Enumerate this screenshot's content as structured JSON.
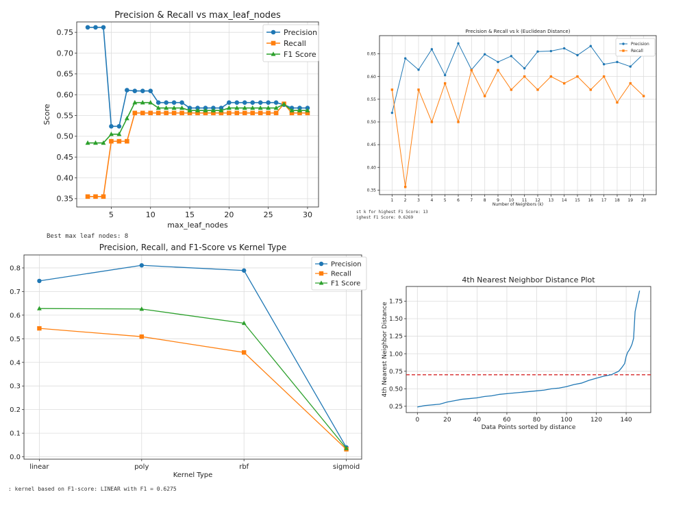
{
  "outputs": {
    "panel1": "Best max leaf nodes: 8",
    "panel2_line1": "st k for highest F1 Score: 13",
    "panel2_line2": "ighest F1 Score: 0.6269",
    "panel3": ": kernel based on F1-score: LINEAR with F1 = 0.6275"
  },
  "chart_data": [
    {
      "type": "line",
      "title": "Precision & Recall vs max_leaf_nodes",
      "xlabel": "max_leaf_nodes",
      "ylabel": "Score",
      "x": [
        2,
        3,
        4,
        5,
        6,
        7,
        8,
        9,
        10,
        11,
        12,
        13,
        14,
        15,
        16,
        17,
        18,
        19,
        20,
        21,
        22,
        23,
        24,
        25,
        26,
        27,
        28,
        29,
        30
      ],
      "xlim": [
        0.6,
        31.4
      ],
      "ylim": [
        0.33,
        0.775
      ],
      "xticks": [
        5,
        10,
        15,
        20,
        25,
        30
      ],
      "xtick_labels": [
        "5",
        "10",
        "15",
        "20",
        "25",
        "30"
      ],
      "yticks": [
        0.35,
        0.4,
        0.45,
        0.5,
        0.55,
        0.6,
        0.65,
        0.7,
        0.75
      ],
      "ytick_labels": [
        "0.35",
        "0.40",
        "0.45",
        "0.50",
        "0.55",
        "0.60",
        "0.65",
        "0.70",
        "0.75"
      ],
      "grid": true,
      "legend": "upper-right",
      "series": [
        {
          "name": "Precision",
          "color": "#1f77b4",
          "marker": "circle",
          "values": [
            0.762,
            0.762,
            0.762,
            0.524,
            0.524,
            0.611,
            0.609,
            0.609,
            0.609,
            0.581,
            0.581,
            0.581,
            0.581,
            0.568,
            0.568,
            0.568,
            0.568,
            0.568,
            0.581,
            0.581,
            0.581,
            0.581,
            0.581,
            0.581,
            0.581,
            0.576,
            0.568,
            0.568,
            0.568
          ]
        },
        {
          "name": "Recall",
          "color": "#ff7f0e",
          "marker": "square",
          "values": [
            0.355,
            0.355,
            0.355,
            0.488,
            0.488,
            0.488,
            0.556,
            0.556,
            0.556,
            0.556,
            0.556,
            0.556,
            0.556,
            0.556,
            0.556,
            0.556,
            0.556,
            0.556,
            0.556,
            0.556,
            0.556,
            0.556,
            0.556,
            0.556,
            0.556,
            0.578,
            0.556,
            0.556,
            0.556
          ]
        },
        {
          "name": "F1 Score",
          "color": "#2ca02c",
          "marker": "triangle",
          "values": [
            0.484,
            0.484,
            0.484,
            0.505,
            0.505,
            0.543,
            0.581,
            0.581,
            0.581,
            0.568,
            0.568,
            0.568,
            0.568,
            0.562,
            0.562,
            0.562,
            0.562,
            0.562,
            0.568,
            0.568,
            0.568,
            0.568,
            0.568,
            0.568,
            0.568,
            0.577,
            0.562,
            0.562,
            0.562
          ]
        }
      ]
    },
    {
      "type": "line",
      "title": "Precision & Recall vs k (Euclidean Distance)",
      "xlabel": "Number of Neighbors (k)",
      "ylabel": "",
      "x": [
        1,
        2,
        3,
        4,
        5,
        6,
        7,
        8,
        9,
        10,
        11,
        12,
        13,
        14,
        15,
        16,
        17,
        18,
        19,
        20
      ],
      "xlim": [
        0.05,
        20.95
      ],
      "ylim": [
        0.34,
        0.69
      ],
      "xticks": [
        1,
        2,
        3,
        4,
        5,
        6,
        7,
        8,
        9,
        10,
        11,
        12,
        13,
        14,
        15,
        16,
        17,
        18,
        19,
        20
      ],
      "xtick_labels": [
        "1",
        "2",
        "3",
        "4",
        "5",
        "6",
        "7",
        "8",
        "9",
        "10",
        "11",
        "12",
        "13",
        "14",
        "15",
        "16",
        "17",
        "18",
        "19",
        "20"
      ],
      "yticks": [
        0.35,
        0.4,
        0.45,
        0.5,
        0.55,
        0.6,
        0.65
      ],
      "ytick_labels": [
        "0.35",
        "0.40",
        "0.45",
        "0.50",
        "0.55",
        "0.60",
        "0.65"
      ],
      "grid": true,
      "legend": "upper-right",
      "series": [
        {
          "name": "Precision",
          "color": "#1f77b4",
          "marker": "circle",
          "values": [
            0.52,
            0.64,
            0.615,
            0.66,
            0.603,
            0.673,
            0.615,
            0.649,
            0.632,
            0.645,
            0.618,
            0.655,
            0.656,
            0.662,
            0.647,
            0.667,
            0.627,
            0.632,
            0.622,
            0.65
          ]
        },
        {
          "name": "Recall",
          "color": "#ff7f0e",
          "marker": "square",
          "values": [
            0.571,
            0.357,
            0.571,
            0.5,
            0.585,
            0.5,
            0.614,
            0.557,
            0.614,
            0.571,
            0.6,
            0.571,
            0.6,
            0.585,
            0.6,
            0.571,
            0.6,
            0.543,
            0.585,
            0.557
          ]
        }
      ]
    },
    {
      "type": "line",
      "title": "Precision, Recall, and F1-Score vs Kernel Type",
      "xlabel": "Kernel Type",
      "ylabel": "",
      "categories": [
        "linear",
        "poly",
        "rbf",
        "sigmoid"
      ],
      "xlim": [
        -0.15,
        3.15
      ],
      "ylim": [
        -0.01,
        0.855
      ],
      "yticks": [
        0.0,
        0.1,
        0.2,
        0.3,
        0.4,
        0.5,
        0.6,
        0.7,
        0.8
      ],
      "ytick_labels": [
        "0.0",
        "0.1",
        "0.2",
        "0.3",
        "0.4",
        "0.5",
        "0.6",
        "0.7",
        "0.8"
      ],
      "grid": true,
      "legend": "upper-right",
      "series": [
        {
          "name": "Precision",
          "color": "#1f77b4",
          "marker": "circle",
          "values": [
            0.745,
            0.811,
            0.789,
            0.04
          ]
        },
        {
          "name": "Recall",
          "color": "#ff7f0e",
          "marker": "square",
          "values": [
            0.544,
            0.509,
            0.442,
            0.032
          ]
        },
        {
          "name": "F1 Score",
          "color": "#2ca02c",
          "marker": "triangle",
          "values": [
            0.628,
            0.626,
            0.566,
            0.036
          ]
        }
      ]
    },
    {
      "type": "line",
      "title": "4th Nearest Neighbor Distance Plot",
      "xlabel": "Data Points sorted by distance",
      "ylabel": "4th Nearest Neighbor Distance",
      "x": [
        0,
        5,
        10,
        15,
        20,
        25,
        30,
        35,
        40,
        45,
        50,
        55,
        60,
        65,
        70,
        75,
        80,
        85,
        90,
        95,
        100,
        105,
        110,
        115,
        120,
        125,
        130,
        133,
        135,
        137,
        139,
        140,
        141,
        142,
        143,
        144,
        145,
        146,
        147,
        148,
        149
      ],
      "xlim": [
        -7.5,
        156.5
      ],
      "ylim": [
        0.16,
        1.96
      ],
      "xticks": [
        0,
        20,
        40,
        60,
        80,
        100,
        120,
        140
      ],
      "xtick_labels": [
        "0",
        "20",
        "40",
        "60",
        "80",
        "100",
        "120",
        "140"
      ],
      "yticks": [
        0.25,
        0.5,
        0.75,
        1.0,
        1.25,
        1.5,
        1.75
      ],
      "ytick_labels": [
        "0.25",
        "0.50",
        "0.75",
        "1.00",
        "1.25",
        "1.50",
        "1.75"
      ],
      "grid": true,
      "threshold": {
        "value": 0.7,
        "color": "#d62728",
        "style": "dashed"
      },
      "series": [
        {
          "name": "",
          "color": "#1f77b4",
          "marker": "none",
          "values": [
            0.24,
            0.26,
            0.27,
            0.28,
            0.31,
            0.33,
            0.35,
            0.36,
            0.37,
            0.39,
            0.4,
            0.42,
            0.43,
            0.44,
            0.45,
            0.46,
            0.47,
            0.48,
            0.5,
            0.51,
            0.53,
            0.56,
            0.58,
            0.62,
            0.65,
            0.68,
            0.7,
            0.73,
            0.75,
            0.8,
            0.86,
            0.96,
            1.02,
            1.05,
            1.09,
            1.14,
            1.22,
            1.6,
            1.7,
            1.8,
            1.9
          ]
        }
      ]
    }
  ]
}
